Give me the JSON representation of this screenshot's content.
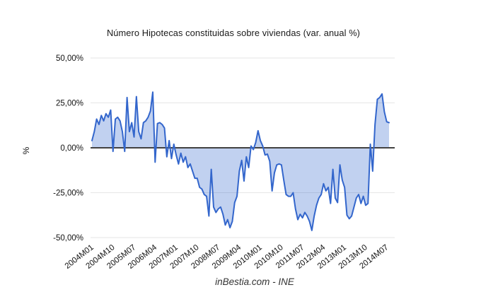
{
  "footer": {
    "text": "inBestia.com - INE"
  },
  "colors": {
    "line": "#3366cc",
    "fill": "rgba(51,102,204,0.3)",
    "gridline": "#e6e6e6",
    "zero_line": "#424242",
    "axis_text": "#111111",
    "background": "#ffffff"
  },
  "chart_data": {
    "type": "area",
    "title": "Número Hipotecas constituidas sobre viviendas (var. anual %)",
    "xlabel": "",
    "ylabel": "%",
    "ylim": [
      -50,
      50
    ],
    "grid": true,
    "baseline": 0,
    "x_start": "2004M01",
    "x_end": "2014M08",
    "frequency": "monthly",
    "x_tick_labels": [
      "2004M01",
      "2004M10",
      "2005M07",
      "2006M04",
      "2007M01",
      "2007M10",
      "2008M07",
      "2009M04",
      "2010M01",
      "2010M10",
      "2011M07",
      "2012M04",
      "2013M01",
      "2013M10",
      "2014M07"
    ],
    "x_tick_month_step": 9,
    "y_tick_values": [
      50,
      25,
      0,
      -25,
      -50
    ],
    "y_tick_labels": [
      "50,00%",
      "25,00%",
      "0,00%",
      "-25,00%",
      "-50,00%"
    ],
    "values": [
      4,
      9,
      16,
      13,
      18,
      15,
      19,
      17,
      21,
      -2,
      16,
      17,
      15,
      9,
      -2,
      28,
      9,
      14,
      6,
      28.5,
      9,
      5,
      14,
      15,
      17,
      20.5,
      31,
      -8,
      13.5,
      14,
      13,
      11,
      -5,
      4,
      -6,
      2,
      -4,
      -9,
      -3,
      -8,
      -5,
      -11,
      -9,
      -13,
      -17,
      -17,
      -22,
      -23,
      -26,
      -27,
      -38,
      -12,
      -33,
      -36,
      -34,
      -33,
      -37,
      -43,
      -40,
      -44.5,
      -41,
      -30.5,
      -27,
      -13,
      -7,
      -18.5,
      -5,
      -11,
      1,
      -1,
      3,
      9.5,
      4,
      1,
      -4,
      -3.5,
      -7.5,
      -24,
      -14,
      -9.5,
      -9,
      -9.5,
      -18,
      -26,
      -27,
      -27,
      -25,
      -34,
      -40,
      -37,
      -39,
      -36,
      -38,
      -41,
      -46,
      -38,
      -32,
      -28,
      -26,
      -20,
      -24,
      -22,
      -31,
      -12,
      -28,
      -30.5,
      -9.5,
      -18,
      -22,
      -37.5,
      -39.5,
      -38,
      -33,
      -28,
      -26,
      -31,
      -27,
      -32,
      -31,
      2,
      -13,
      13,
      27,
      28,
      30,
      20,
      14.5,
      14
    ]
  }
}
